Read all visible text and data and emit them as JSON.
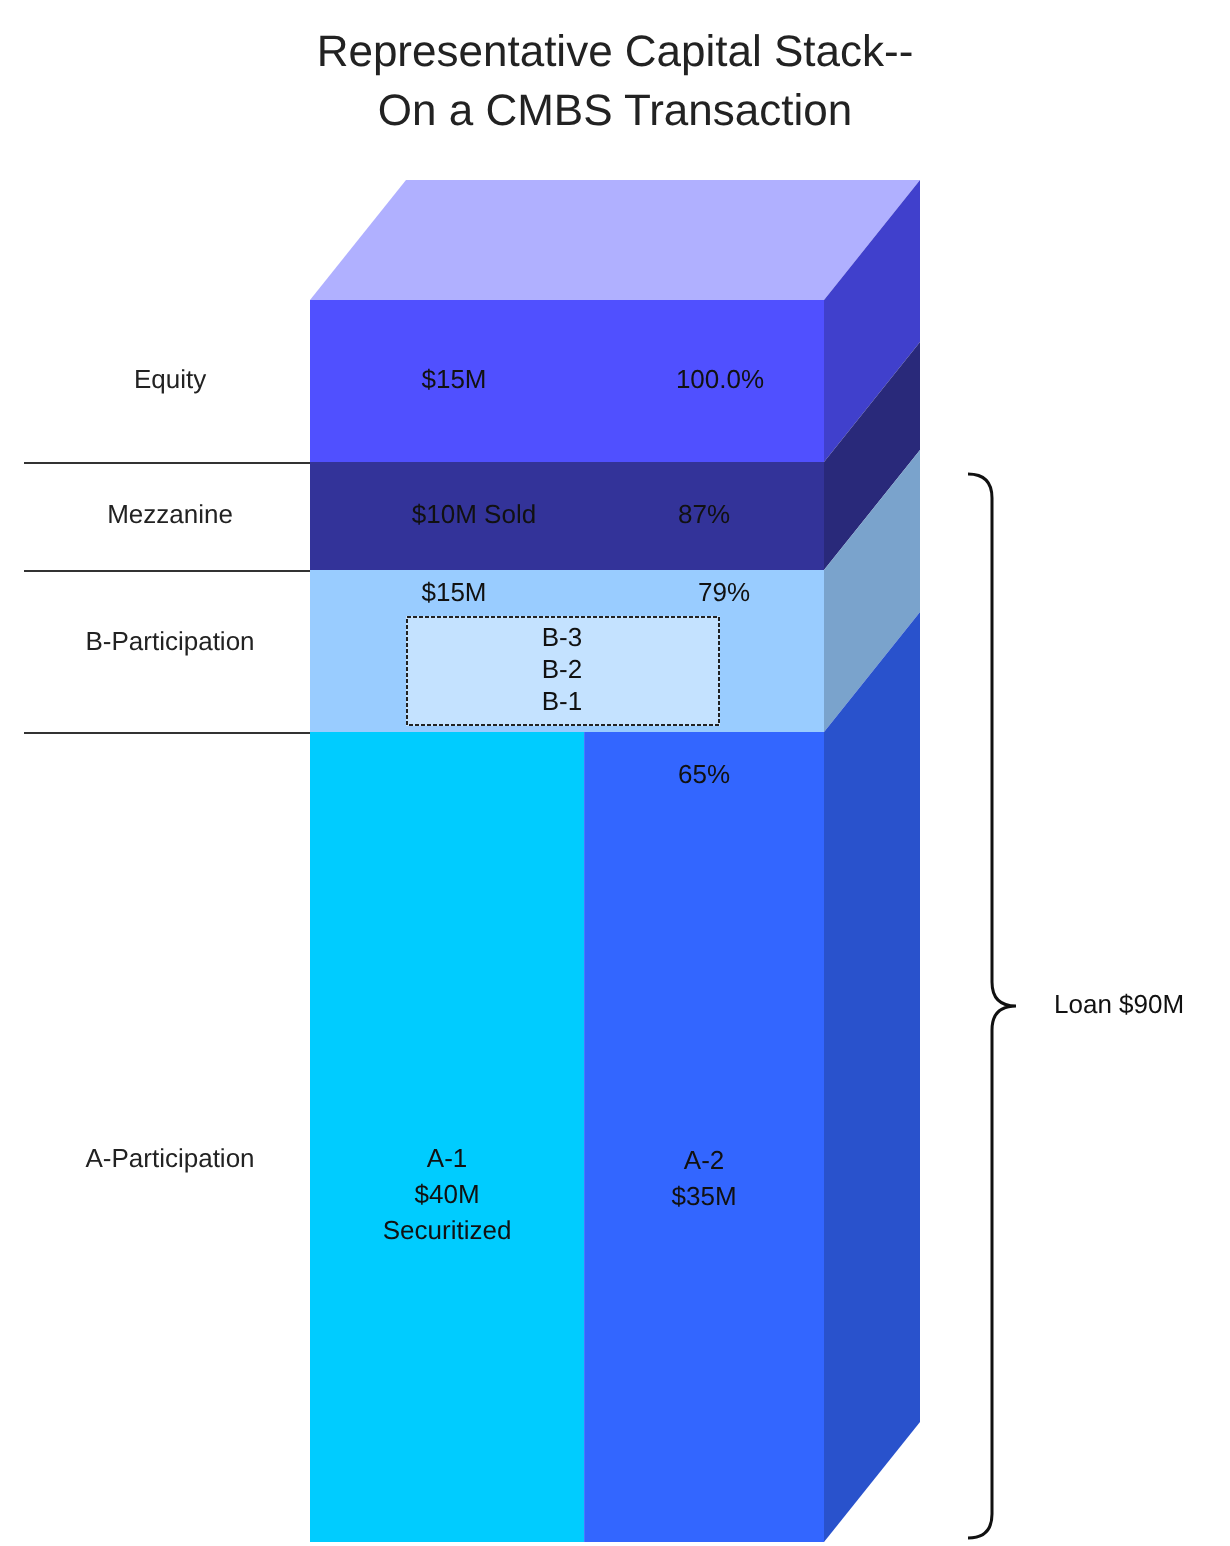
{
  "chart_data": {
    "type": "other",
    "title": "Representative Capital Stack--\nOn a CMBS Transaction",
    "categories": [
      "Equity",
      "Mezzanine",
      "B-Participation",
      "A-Participation"
    ],
    "series": [
      {
        "values": [
          15,
          10,
          15,
          40
        ],
        "value_labels": [
          "$15M",
          "$10M Sold",
          "$15M",
          "$40M"
        ],
        "colors": [
          "#5050ff",
          "#333399",
          "#99ccff",
          "#00ccff"
        ]
      },
      {
        "values": [
          null,
          null,
          null,
          35
        ],
        "value_labels": [
          null,
          null,
          null,
          "$35M"
        ],
        "colors": [
          null,
          null,
          null,
          "#3366ff"
        ]
      }
    ],
    "annotations": [
      "100.0%",
      "87%",
      "79%",
      "65%",
      "B-3\nB-2\nB-1",
      "Loan $90M",
      "A-1",
      "Securitized",
      "A-2"
    ]
  }
}
